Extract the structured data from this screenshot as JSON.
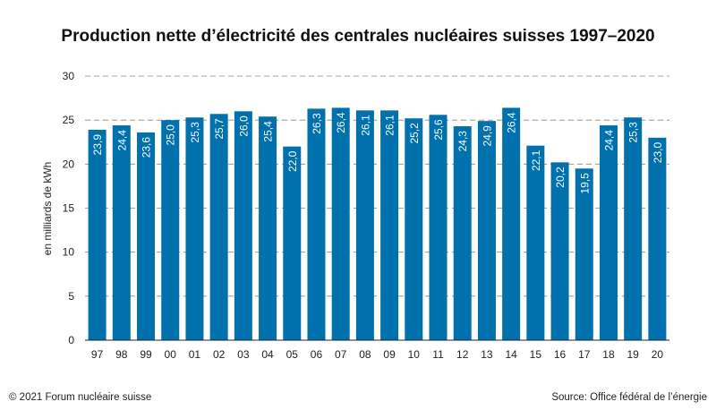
{
  "title": "Production nette d’électricité des centrales nucléaires suisses 1997–2020",
  "footer": {
    "copyright": "© 2021 Forum nucléaire suisse",
    "source": "Source: Office fédéral de l’énergie"
  },
  "colors": {
    "bar": "#0071ad",
    "bar_label": "#ffffff",
    "grid": "#888888",
    "axis": "#222222"
  },
  "chart_data": {
    "type": "bar",
    "title": "Production nette d’électricité des centrales nucléaires suisses 1997–2020",
    "ylabel": "en milliards de kWh",
    "xlabel": "",
    "ylim": [
      0,
      30
    ],
    "yticks": [
      0,
      5,
      10,
      15,
      20,
      25,
      30
    ],
    "grid": true,
    "categories": [
      "97",
      "98",
      "99",
      "00",
      "01",
      "02",
      "03",
      "04",
      "05",
      "06",
      "07",
      "08",
      "09",
      "10",
      "11",
      "12",
      "13",
      "14",
      "15",
      "16",
      "17",
      "18",
      "19",
      "20"
    ],
    "values": [
      23.9,
      24.4,
      23.6,
      25.0,
      25.3,
      25.7,
      26.0,
      25.4,
      22.0,
      26.3,
      26.4,
      26.1,
      26.1,
      25.2,
      25.6,
      24.3,
      24.9,
      26.4,
      22.1,
      20.2,
      19.5,
      24.4,
      25.3,
      23.0
    ],
    "data_labels": [
      "23,9",
      "24,4",
      "23,6",
      "25,0",
      "25,3",
      "25,7",
      "26,0",
      "25,4",
      "22,0",
      "26,3",
      "26,4",
      "26,1",
      "26,1",
      "25,2",
      "25,6",
      "24,3",
      "24,9",
      "26,4",
      "22,1",
      "20,2",
      "19,5",
      "24,4",
      "25,3",
      "23,0"
    ]
  }
}
